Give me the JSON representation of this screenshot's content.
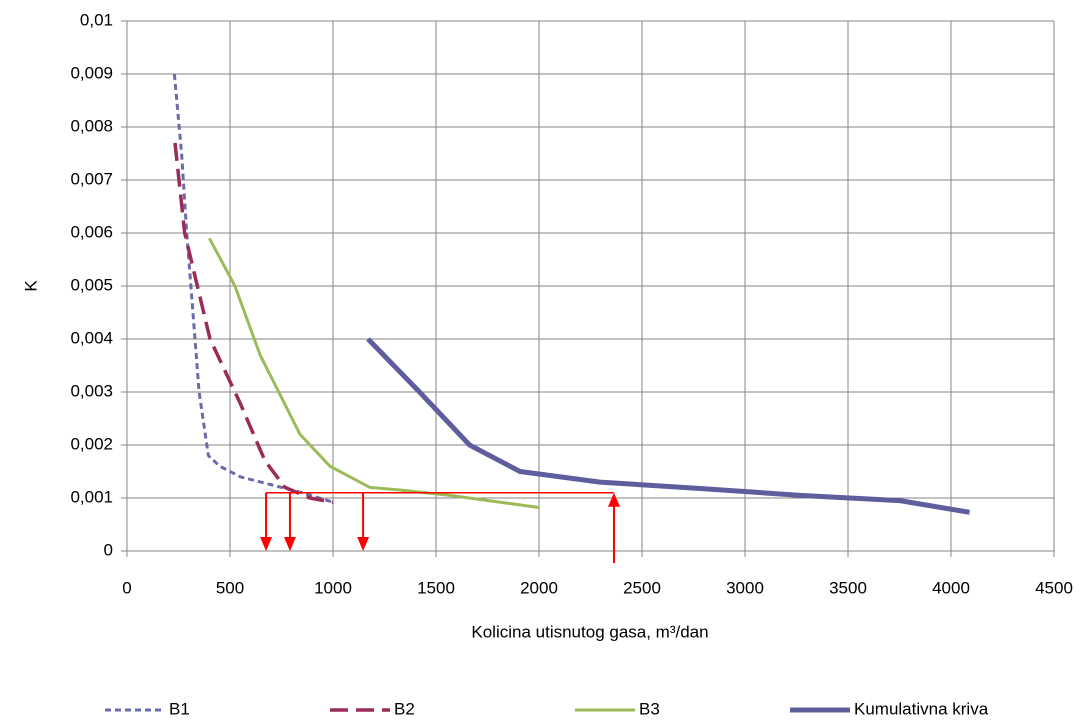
{
  "chart_data": {
    "type": "line",
    "xlabel": "Kolicina utisnutog gasa, m³/dan",
    "ylabel": "K",
    "xlim": [
      0,
      4500
    ],
    "xticks": [
      0,
      500,
      1000,
      1500,
      2000,
      2500,
      3000,
      3500,
      4000,
      4500
    ],
    "ylim": [
      0,
      0.01
    ],
    "yticks": [
      0,
      {
        "value": 0.001,
        "label": "0,001"
      },
      {
        "value": 0.002,
        "label": "0,002"
      },
      {
        "value": 0.003,
        "label": "0,003"
      },
      {
        "value": 0.004,
        "label": "0,004"
      },
      {
        "value": 0.005,
        "label": "0,005"
      },
      {
        "value": 0.006,
        "label": "0,006"
      },
      {
        "value": 0.007,
        "label": "0,007"
      },
      {
        "value": 0.008,
        "label": "0,008"
      },
      {
        "value": 0.009,
        "label": "0,009"
      },
      {
        "value": 0.01,
        "label": "0,01"
      }
    ],
    "grid": true,
    "legend": "bottom",
    "series": [
      {
        "name": "B1",
        "color": "#6b6baa",
        "dash": "6,4",
        "width": 3,
        "x": [
          230,
          265,
          290,
          320,
          350,
          395,
          450,
          550,
          700,
          850,
          1000
        ],
        "values": [
          0.009,
          0.0075,
          0.006,
          0.0045,
          0.003,
          0.0018,
          0.0016,
          0.0014,
          0.00125,
          0.0011,
          0.00092
        ]
      },
      {
        "name": "B2",
        "color": "#9b2c5a",
        "dash": "18,8",
        "width": 3.5,
        "x": [
          233,
          280,
          403,
          548,
          670,
          767,
          888,
          1000
        ],
        "values": [
          0.0077,
          0.006,
          0.004,
          0.0028,
          0.0017,
          0.0012,
          0.001,
          0.00092
        ]
      },
      {
        "name": "B3",
        "color": "#9bbb59",
        "dash": "",
        "width": 3,
        "x": [
          400,
          524,
          646,
          840,
          985,
          1179,
          1325,
          1568,
          2000
        ],
        "values": [
          0.0059,
          0.005,
          0.0037,
          0.0022,
          0.0016,
          0.0012,
          0.00115,
          0.00105,
          0.00082
        ]
      },
      {
        "name": "Kumulativna kriva",
        "color": "#5e5e9e",
        "dash": "",
        "width": 5,
        "x": [
          1170,
          1420,
          1663,
          1908,
          2296,
          2782,
          3267,
          3752,
          4090
        ],
        "values": [
          0.004,
          0.003,
          0.002,
          0.0015,
          0.0013,
          0.00118,
          0.00105,
          0.00095,
          0.00073
        ]
      }
    ],
    "arrows": {
      "color": "#ff0000",
      "y": 0.0011,
      "down_x": [
        675,
        791,
        1146
      ],
      "up_x": 2364
    }
  }
}
